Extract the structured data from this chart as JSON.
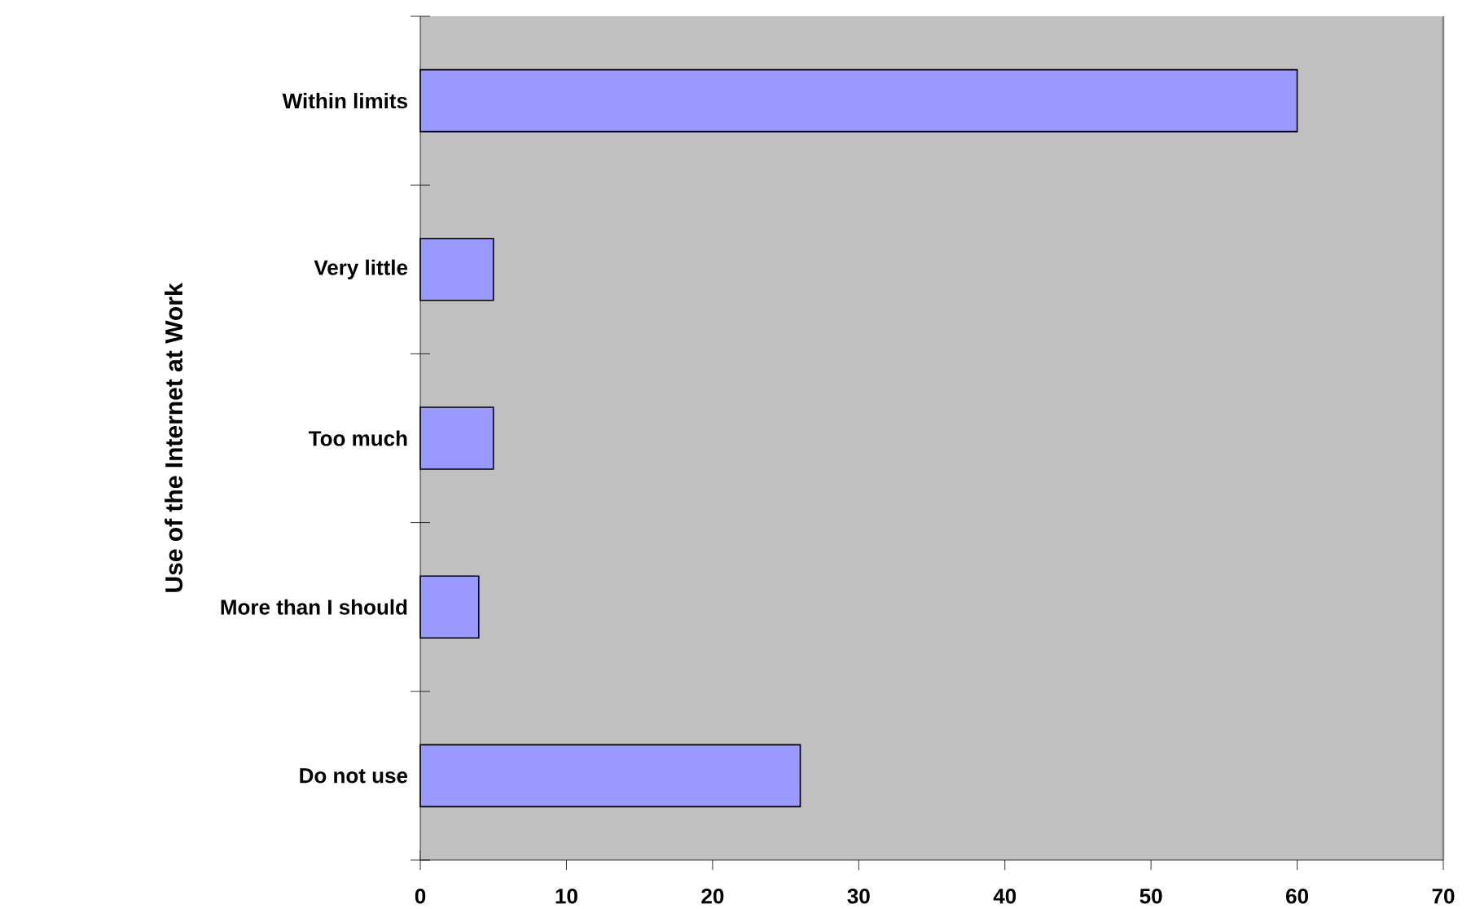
{
  "chart_data": {
    "type": "bar",
    "orientation": "horizontal",
    "ylabel": "Use of the Internet at Work",
    "categories": [
      "Within limits",
      "Very little",
      "Too much",
      "More than I should",
      "Do not use"
    ],
    "values": [
      60,
      5,
      5,
      4,
      26
    ],
    "color": "#9999ff",
    "xlim": [
      0,
      70
    ],
    "xticks": [
      0,
      10,
      20,
      30,
      40,
      50,
      60,
      70
    ]
  }
}
